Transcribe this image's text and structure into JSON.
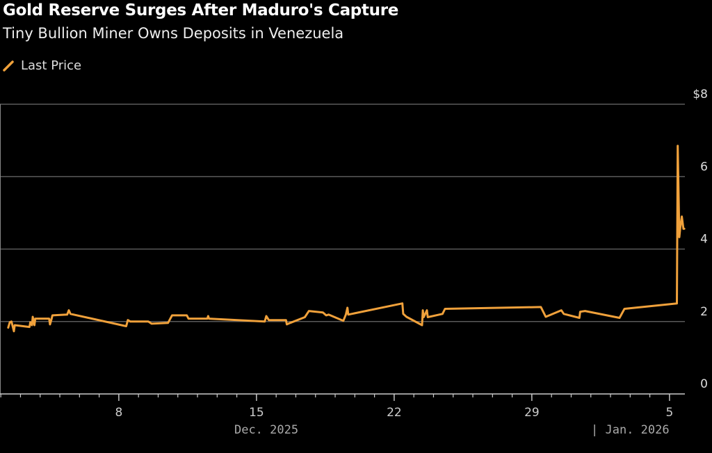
{
  "chart_data": {
    "type": "line",
    "title": "Gold Reserve Surges After Maduro's Capture",
    "subtitle": "Tiny Bullion Miner Owns Deposits in Venezuela",
    "legend": {
      "position": "top-left",
      "entries": [
        "Last Price"
      ]
    },
    "grid": true,
    "colors": {
      "line": "#f0a13b",
      "grid": "#5a5a5a",
      "axis": "#cccccc",
      "background": "#000000"
    },
    "ylim": [
      0,
      8
    ],
    "yticks": [
      {
        "value": 0,
        "label": "0"
      },
      {
        "value": 2,
        "label": "2"
      },
      {
        "value": 4,
        "label": "4"
      },
      {
        "value": 6,
        "label": "6"
      },
      {
        "value": 8,
        "label": "$8"
      }
    ],
    "xlim": [
      "2025-12-01T23",
      "2026-01-05T23"
    ],
    "xticks": [
      {
        "date": "2025-12-08",
        "label": "8"
      },
      {
        "date": "2025-12-15",
        "label": "15"
      },
      {
        "date": "2025-12-22",
        "label": "22"
      },
      {
        "date": "2025-12-29",
        "label": "29"
      },
      {
        "date": "2026-01-05",
        "label": "5"
      }
    ],
    "xperiods": [
      {
        "date": "2025-12-15T12",
        "label": "Dec. 2025"
      },
      {
        "date": "2026-01-03T00",
        "label": "| Jan. 2026"
      }
    ],
    "series": [
      {
        "name": "Last Price",
        "points": [
          [
            "2025-12-02T09",
            1.83
          ],
          [
            "2025-12-02T11",
            1.98
          ],
          [
            "2025-12-02T13",
            2.0
          ],
          [
            "2025-12-02T16",
            1.73
          ],
          [
            "2025-12-02T17",
            1.9
          ],
          [
            "2025-12-03T11",
            1.85
          ],
          [
            "2025-12-03T12",
            1.98
          ],
          [
            "2025-12-03T14",
            1.9
          ],
          [
            "2025-12-03T15",
            2.13
          ],
          [
            "2025-12-03T17",
            1.9
          ],
          [
            "2025-12-03T18",
            2.08
          ],
          [
            "2025-12-04T11",
            2.08
          ],
          [
            "2025-12-04T12",
            1.92
          ],
          [
            "2025-12-04T14",
            2.08
          ],
          [
            "2025-12-04T15",
            2.17
          ],
          [
            "2025-12-05T09",
            2.19
          ],
          [
            "2025-12-05T11",
            2.31
          ],
          [
            "2025-12-05T13",
            2.21
          ],
          [
            "2025-12-08T09",
            1.87
          ],
          [
            "2025-12-08T11",
            2.04
          ],
          [
            "2025-12-08T14",
            2.0
          ],
          [
            "2025-12-09T12",
            2.0
          ],
          [
            "2025-12-09T16",
            1.94
          ],
          [
            "2025-12-10T12",
            1.96
          ],
          [
            "2025-12-10T17",
            2.17
          ],
          [
            "2025-12-11T11",
            2.17
          ],
          [
            "2025-12-11T13",
            2.08
          ],
          [
            "2025-12-12T12",
            2.08
          ],
          [
            "2025-12-12T13",
            2.15
          ],
          [
            "2025-12-12T14",
            2.08
          ],
          [
            "2025-12-15T10",
            2.0
          ],
          [
            "2025-12-15T12",
            2.15
          ],
          [
            "2025-12-15T15",
            2.04
          ],
          [
            "2025-12-16T12",
            2.04
          ],
          [
            "2025-12-16T13",
            1.92
          ],
          [
            "2025-12-16T17",
            1.96
          ],
          [
            "2025-12-17T11",
            2.12
          ],
          [
            "2025-12-17T16",
            2.29
          ],
          [
            "2025-12-18T09",
            2.25
          ],
          [
            "2025-12-18T13",
            2.17
          ],
          [
            "2025-12-18T16",
            2.19
          ],
          [
            "2025-12-19T10",
            2.02
          ],
          [
            "2025-12-19T13",
            2.19
          ],
          [
            "2025-12-19T15",
            2.38
          ],
          [
            "2025-12-19T16",
            2.19
          ],
          [
            "2025-12-22T10",
            2.5
          ],
          [
            "2025-12-22T11",
            2.21
          ],
          [
            "2025-12-22T15",
            2.13
          ],
          [
            "2025-12-23T10",
            1.9
          ],
          [
            "2025-12-23T11",
            2.31
          ],
          [
            "2025-12-23T12",
            2.12
          ],
          [
            "2025-12-23T16",
            2.31
          ],
          [
            "2025-12-23T17",
            2.12
          ],
          [
            "2025-12-24T11",
            2.21
          ],
          [
            "2025-12-24T14",
            2.35
          ],
          [
            "2025-12-29T11",
            2.4
          ],
          [
            "2025-12-29T17",
            2.13
          ],
          [
            "2025-12-30T12",
            2.31
          ],
          [
            "2025-12-30T15",
            2.21
          ],
          [
            "2025-12-31T10",
            2.1
          ],
          [
            "2025-12-31T11",
            2.27
          ],
          [
            "2025-12-31T17",
            2.29
          ],
          [
            "2026-01-02T11",
            2.1
          ],
          [
            "2026-01-02T17",
            2.35
          ],
          [
            "2026-01-05T09",
            2.5
          ],
          [
            "2026-01-05T10",
            6.85
          ],
          [
            "2026-01-05T12",
            4.33
          ],
          [
            "2026-01-05T13",
            4.56
          ],
          [
            "2026-01-05T15",
            4.9
          ],
          [
            "2026-01-05T17",
            4.56
          ],
          [
            "2026-01-05T18",
            4.56
          ]
        ]
      }
    ]
  }
}
